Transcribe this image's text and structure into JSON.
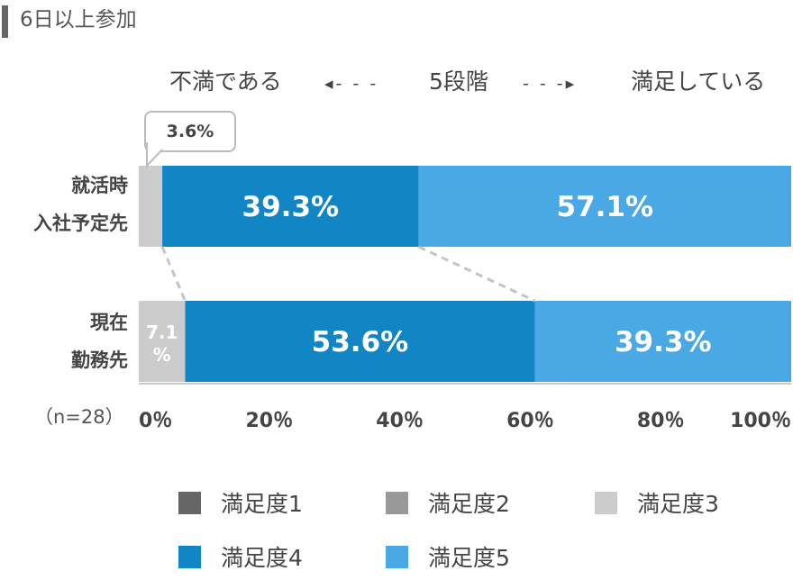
{
  "title": "6日以上参加",
  "scale_header": {
    "left_label": "不満である",
    "left_arrow": "◂- - -",
    "center_label": "5段階",
    "right_arrow": "- - -▸",
    "right_label": "満足している"
  },
  "row_labels": [
    {
      "line1": "就活時",
      "line2": "入社予定先"
    },
    {
      "line1": "現在",
      "line2": "勤務先"
    }
  ],
  "n_label": "（n=28）",
  "callout_text": "3.6%",
  "colors": {
    "満足度1": "#666666",
    "満足度2": "#999999",
    "満足度3": "#cccccc",
    "満足度4": "#1286c4",
    "満足度5": "#4aa9e4"
  },
  "legend": [
    {
      "label": "満足度1",
      "color": "#666666"
    },
    {
      "label": "満足度2",
      "color": "#999999"
    },
    {
      "label": "満足度3",
      "color": "#cccccc"
    },
    {
      "label": "満足度4",
      "color": "#1286c4"
    },
    {
      "label": "満足度5",
      "color": "#4aa9e4"
    }
  ],
  "chart_data": {
    "type": "bar",
    "orientation": "horizontal",
    "stacked": true,
    "categories": [
      "就活時 入社予定先",
      "現在 勤務先"
    ],
    "series": [
      {
        "name": "満足度1",
        "values": [
          0,
          0
        ],
        "labels": [
          "",
          ""
        ]
      },
      {
        "name": "満足度2",
        "values": [
          0,
          0
        ],
        "labels": [
          "",
          ""
        ]
      },
      {
        "name": "満足度3",
        "values": [
          3.6,
          7.1
        ],
        "labels": [
          "3.6%",
          "7.1%"
        ]
      },
      {
        "name": "満足度4",
        "values": [
          39.3,
          53.6
        ],
        "labels": [
          "39.3%",
          "53.6%"
        ]
      },
      {
        "name": "満足度5",
        "values": [
          57.1,
          39.3
        ],
        "labels": [
          "57.1%",
          "39.3%"
        ]
      }
    ],
    "xlim": [
      0,
      100
    ],
    "x_ticks": [
      0,
      20,
      40,
      60,
      80,
      100
    ],
    "x_tick_labels": [
      "0％",
      "20％",
      "40％",
      "60％",
      "80％",
      "100％"
    ],
    "legend_position": "bottom",
    "grid": false
  }
}
